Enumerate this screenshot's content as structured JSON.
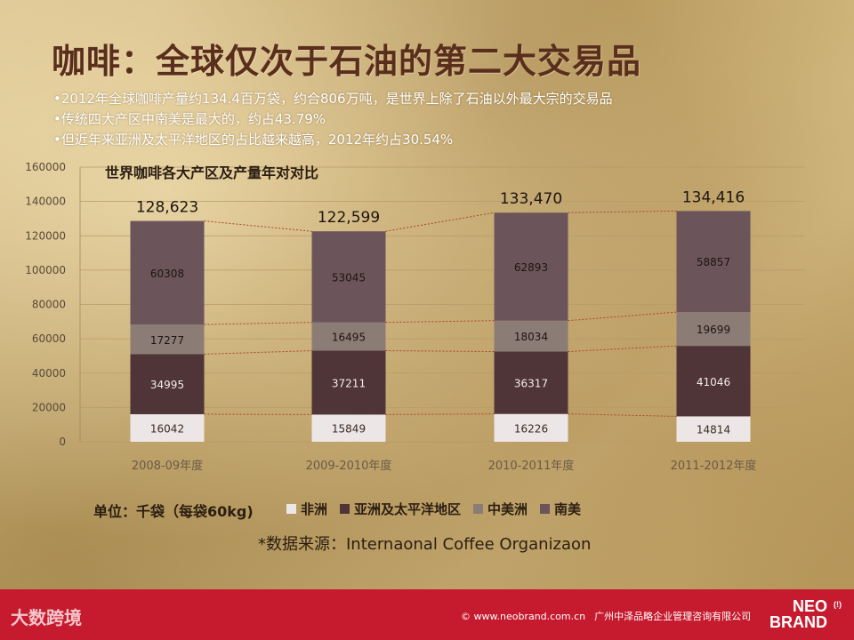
{
  "title": "咖啡：全球仅次于石油的第二大交易品",
  "bullets": [
    "•2012年全球咖啡产量约134.4百万袋，约合806万吨，是世界上除了石油以外最大宗的交易品",
    "•传统四大产区中南美是最大的，约占43.79%",
    "•但近年来亚洲及太平洋地区的占比越来越高，2012年约占30.54%"
  ],
  "unit_note": "单位：千袋（每袋60kg)",
  "source_note": "*数据来源：Internaonal Coffee Organizaon",
  "footer": {
    "left_logo_text": "大数跨境",
    "copyright": "© www.neobrand.com.cn",
    "company": "广州中泽品略企业管理咨询有限公司",
    "brand_line1": "NEO",
    "brand_line2": "BRAND",
    "brand_mark": "(!)"
  },
  "colors": {
    "title": "#5a2e1c",
    "footer_red": "#c61b2e"
  },
  "chart_data": {
    "type": "bar",
    "stacked": true,
    "title": "世界咖啡各大产区及产量年对对比",
    "categories": [
      "2008-09年度",
      "2009-2010年度",
      "2010-2011年度",
      "2011-2012年度"
    ],
    "series": [
      {
        "name": "非洲",
        "values": [
          16042,
          15849,
          16226,
          14814
        ],
        "color": "#ece6e6"
      },
      {
        "name": "亚洲及太平洋地区",
        "values": [
          34995,
          37211,
          36317,
          41046
        ],
        "color": "#4f3438"
      },
      {
        "name": "中美洲",
        "values": [
          17277,
          16495,
          18034,
          19699
        ],
        "color": "#8b7c76"
      },
      {
        "name": "南美",
        "values": [
          60308,
          53045,
          62893,
          58857
        ],
        "color": "#6b555b"
      }
    ],
    "totals": [
      "128,623",
      "122,599",
      "133,470",
      "134,416"
    ],
    "ylim": [
      0,
      160000
    ],
    "yticks": [
      "0",
      "20000",
      "40000",
      "60000",
      "80000",
      "100000",
      "120000",
      "140000",
      "160000"
    ],
    "grid": true,
    "legend_position": "bottom",
    "connector_lines": true
  }
}
